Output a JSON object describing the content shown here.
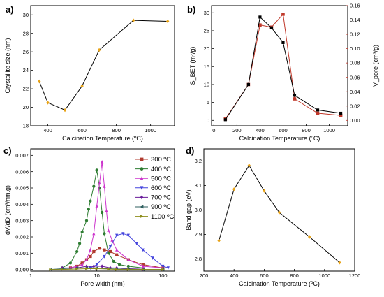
{
  "chart_data": [
    {
      "panel": "a)",
      "type": "line",
      "xlabel": "Calcination Temperature (ºC)",
      "ylabel": "Crystallite size (nm)",
      "xlim": [
        300,
        1140
      ],
      "ylim": [
        18,
        31
      ],
      "xticks": [
        400,
        600,
        800,
        1000
      ],
      "yticks": [
        18,
        20,
        22,
        24,
        26,
        28,
        30
      ],
      "marker_color": "#e8a317",
      "line_color": "#000000",
      "series": [
        {
          "x": [
            350,
            400,
            500,
            600,
            700,
            900,
            1100
          ],
          "y": [
            22.8,
            20.5,
            19.7,
            22.3,
            26.2,
            29.4,
            29.3
          ]
        }
      ]
    },
    {
      "panel": "b)",
      "type": "line",
      "xlabel": "Calcination Temperature (ºC)",
      "ylabel_left": "S_BET (m²/g)",
      "ylabel_right": "V_pore (cm³/g)",
      "xlim": [
        -20,
        1160
      ],
      "ylim_left": [
        -1.5,
        32
      ],
      "ylim_right": [
        -0.0075,
        0.16
      ],
      "xticks": [
        0,
        200,
        400,
        600,
        800,
        1000
      ],
      "yticks_left": [
        0,
        5,
        10,
        15,
        20,
        25,
        30
      ],
      "yticks_right": [
        0.0,
        0.02,
        0.04,
        0.06,
        0.08,
        0.1,
        0.12,
        0.14,
        0.16
      ],
      "right_axis_color": "#c0392b",
      "series": [
        {
          "axis": "left",
          "color": "#000000",
          "x": [
            100,
            300,
            400,
            500,
            600,
            700,
            900,
            1100
          ],
          "y": [
            0.2,
            10,
            28.8,
            25.8,
            21.7,
            7,
            2.9,
            2
          ]
        },
        {
          "axis": "right",
          "color": "#c0392b",
          "x": [
            100,
            300,
            400,
            500,
            600,
            700,
            900,
            1100
          ],
          "y": [
            0.002,
            0.05,
            0.133,
            0.13,
            0.148,
            0.03,
            0.01,
            0.007
          ]
        }
      ]
    },
    {
      "panel": "c)",
      "type": "line",
      "xlabel": "Pore width (nm)",
      "ylabel": "dV/dD (cm³/nm.g)",
      "xscale": "log",
      "xlim": [
        1,
        150
      ],
      "ylim": [
        -0.0001,
        0.0074
      ],
      "xticks": [
        1,
        10,
        100
      ],
      "yticks": [
        0.0,
        0.001,
        0.002,
        0.003,
        0.004,
        0.005,
        0.006,
        0.007
      ],
      "series": [
        {
          "name": "300 ºC",
          "color": "#b03a2e",
          "marker": "square",
          "x": [
            4,
            5,
            6,
            7,
            8,
            9,
            11,
            13,
            16,
            20,
            30,
            50,
            100
          ],
          "y": [
            0.0001,
            0.0002,
            0.0004,
            0.0006,
            0.0008,
            0.0011,
            0.0013,
            0.0012,
            0.0011,
            0.0009,
            0.0006,
            0.0003,
            0.0001
          ]
        },
        {
          "name": "400 ºC",
          "color": "#2e7d32",
          "marker": "circle",
          "x": [
            3,
            4,
            5,
            5.5,
            6,
            7,
            7.5,
            8,
            9,
            10,
            11,
            12,
            13,
            15,
            18,
            22,
            30,
            50
          ],
          "y": [
            0.0001,
            0.0004,
            0.0011,
            0.0016,
            0.0023,
            0.003,
            0.0037,
            0.0042,
            0.0051,
            0.0061,
            0.005,
            0.0035,
            0.0022,
            0.001,
            0.0005,
            0.0003,
            0.0002,
            0.0001
          ]
        },
        {
          "name": "500 ºC",
          "color": "#cc33cc",
          "marker": "triangle-up",
          "x": [
            4,
            5,
            6,
            7,
            8,
            9,
            10,
            11,
            12,
            13,
            14,
            15,
            17,
            20,
            30,
            50,
            100
          ],
          "y": [
            0.0001,
            0.0002,
            0.0003,
            0.0006,
            0.0012,
            0.0022,
            0.0039,
            0.0053,
            0.0066,
            0.0051,
            0.0036,
            0.0024,
            0.0018,
            0.0012,
            0.0006,
            0.0002,
            0.0001
          ]
        },
        {
          "name": "600 ºC",
          "color": "#4444dd",
          "marker": "triangle-down",
          "x": [
            8,
            10,
            13,
            16,
            20,
            25,
            30,
            40,
            50,
            70,
            100,
            120
          ],
          "y": [
            0.0001,
            0.0003,
            0.0008,
            0.0014,
            0.0021,
            0.0022,
            0.0021,
            0.0016,
            0.0012,
            0.0007,
            0.0002,
            0.0001
          ]
        },
        {
          "name": "700 ºC",
          "color": "#6a1b9a",
          "marker": "diamond",
          "x": [
            3,
            5,
            7,
            9,
            12,
            16,
            20,
            30,
            50
          ],
          "y": [
            0.0001,
            0.0001,
            0.0002,
            0.0002,
            0.0002,
            0.0001,
            0.0001,
            5e-05,
            2e-05
          ]
        },
        {
          "name": "900 ºC",
          "color": "#2f5f5f",
          "marker": "triangle-left",
          "x": [
            2,
            3,
            5,
            7,
            10,
            15,
            20,
            30,
            50,
            100
          ],
          "y": [
            0.0,
            5e-05,
            0.0001,
            0.0001,
            0.0001,
            5e-05,
            3e-05,
            2e-05,
            0.0,
            0.0
          ]
        },
        {
          "name": "1100 ºC",
          "color": "#8d8d1a",
          "marker": "triangle-right",
          "x": [
            2,
            3,
            5,
            7,
            10,
            15,
            20,
            30,
            50,
            100
          ],
          "y": [
            0.0,
            0.0,
            3e-05,
            5e-05,
            5e-05,
            3e-05,
            0.0,
            0.0,
            0.0,
            0.0
          ]
        }
      ],
      "legend_position": "top-right"
    },
    {
      "panel": "d)",
      "type": "line",
      "xlabel": "Calcination Temperature (ºC)",
      "ylabel": "Band gap (eV)",
      "xlim": [
        200,
        1200
      ],
      "ylim": [
        2.75,
        3.25
      ],
      "xticks": [
        200,
        400,
        600,
        800,
        1000,
        1200
      ],
      "yticks": [
        2.8,
        2.9,
        3.0,
        3.1,
        3.2
      ],
      "marker_color": "#e8a317",
      "line_color": "#000000",
      "series": [
        {
          "x": [
            300,
            400,
            500,
            600,
            700,
            900,
            1100
          ],
          "y": [
            2.875,
            3.085,
            3.182,
            3.078,
            2.99,
            2.89,
            2.785
          ]
        }
      ]
    }
  ]
}
